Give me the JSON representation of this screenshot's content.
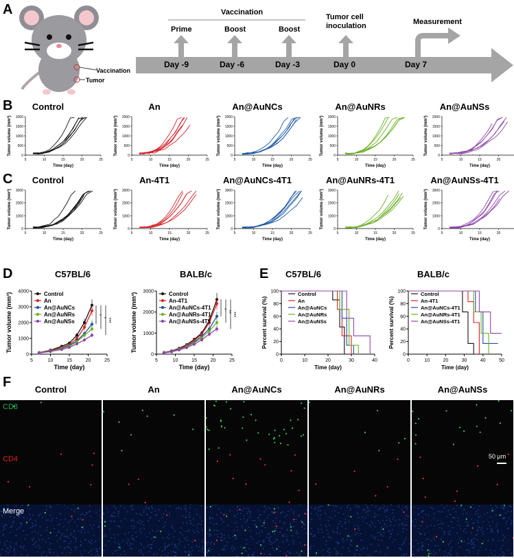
{
  "panel_labels": {
    "a": "A",
    "b": "B",
    "c": "C",
    "d": "D",
    "e": "E",
    "f": "F"
  },
  "panelA": {
    "mouse_labels": [
      "Vaccination",
      "Tumor"
    ],
    "vaccination_header": "Vaccination",
    "events": [
      "Prime",
      "Boost",
      "Boost"
    ],
    "inoculation": "Tumor cell\ninoculation",
    "measurement": "Measurement",
    "days": [
      "Day -9",
      "Day -6",
      "Day -3",
      "Day 0",
      "Day 7"
    ]
  },
  "panelB": {
    "titles": [
      "Control",
      "An",
      "An@AuNCs",
      "An@AuNRs",
      "An@AuNSs"
    ],
    "colors": [
      "#111111",
      "#d61f26",
      "#1e5aa6",
      "#6ab023",
      "#8e44a8"
    ],
    "ylabel": "Tumor volume (mm³)",
    "xlabel": "Time (day)",
    "yticks": [
      "0",
      "500",
      "1000",
      "1500",
      "2000"
    ],
    "xticks": [
      "5",
      "10",
      "15",
      "20",
      "25"
    ]
  },
  "panelC": {
    "titles": [
      "Control",
      "An-4T1",
      "An@AuNCs-4T1",
      "An@AuNRs-4T1",
      "An@AuNSs-4T1"
    ],
    "ylabel": "Tumor volume (mm³)",
    "xlabel": "Time (day)",
    "yticks": [
      "0",
      "1000",
      "2000",
      "3000"
    ],
    "xticks": [
      "5",
      "10",
      "15",
      "20",
      "25"
    ]
  },
  "chart_data": [
    {
      "type": "line",
      "title": "C57BL/6",
      "xlabel": "Time (day)",
      "ylabel": "Tumor volume (mm³)",
      "xlim": [
        5,
        25
      ],
      "ylim": [
        0,
        4000
      ],
      "xticks": [
        "5",
        "10",
        "15",
        "20",
        "25"
      ],
      "yticks": [
        "0",
        "1000",
        "2000",
        "3000",
        "4000"
      ],
      "x": [
        7,
        10,
        13,
        15,
        17,
        19,
        21
      ],
      "series": [
        {
          "name": "Control",
          "color": "#111111",
          "values": [
            100,
            250,
            500,
            700,
            1200,
            2000,
            3100
          ]
        },
        {
          "name": "An",
          "color": "#e02020",
          "values": [
            90,
            220,
            420,
            600,
            1000,
            1700,
            2750
          ]
        },
        {
          "name": "An@AuNCs",
          "color": "#1f4fa0",
          "values": [
            80,
            200,
            380,
            550,
            850,
            1300,
            1900
          ]
        },
        {
          "name": "An@AuNRs",
          "color": "#6ab023",
          "values": [
            80,
            190,
            350,
            500,
            780,
            1200,
            1600
          ]
        },
        {
          "name": "An@AuNSs",
          "color": "#8e44a8",
          "values": [
            70,
            170,
            300,
            430,
            650,
            900,
            1200
          ]
        }
      ],
      "significance": [
        "*",
        "*",
        "***"
      ]
    },
    {
      "type": "line",
      "title": "BALB/c",
      "xlabel": "Time (day)",
      "ylabel": "Tumor volume (mm³)",
      "xlim": [
        5,
        25
      ],
      "ylim": [
        0,
        3000
      ],
      "xticks": [
        "5",
        "10",
        "15",
        "20",
        "25"
      ],
      "yticks": [
        "0",
        "1000",
        "2000",
        "3000"
      ],
      "x": [
        7,
        9,
        11,
        13,
        15,
        17,
        19,
        21
      ],
      "series": [
        {
          "name": "Control",
          "color": "#111111",
          "values": [
            80,
            150,
            280,
            450,
            700,
            1000,
            1600,
            2600
          ]
        },
        {
          "name": "An-4T1",
          "color": "#e02020",
          "values": [
            75,
            140,
            260,
            420,
            650,
            950,
            1500,
            2400
          ]
        },
        {
          "name": "An@AuNCs-4T1",
          "color": "#1f4fa0",
          "values": [
            70,
            130,
            240,
            380,
            580,
            850,
            1200,
            1800
          ]
        },
        {
          "name": "An@AuNRs-4T1",
          "color": "#6ab023",
          "values": [
            65,
            120,
            220,
            350,
            530,
            780,
            1100,
            1500
          ]
        },
        {
          "name": "An@AuNSs-4T1",
          "color": "#8e44a8",
          "values": [
            60,
            110,
            200,
            310,
            470,
            680,
            950,
            1200
          ]
        }
      ],
      "significance": [
        "*",
        "**",
        "***"
      ]
    },
    {
      "type": "line",
      "title": "C57BL/6",
      "subtype": "step (Kaplan-Meier)",
      "xlabel": "Time (day)",
      "ylabel": "Percent survival (%)",
      "xlim": [
        0,
        40
      ],
      "ylim": [
        0,
        100
      ],
      "xticks": [
        "0",
        "10",
        "20",
        "30",
        "40"
      ],
      "yticks": [
        "0",
        "20",
        "40",
        "60",
        "80",
        "100"
      ],
      "series": [
        {
          "name": "Control",
          "color": "#111111",
          "steps": [
            [
              0,
              100
            ],
            [
              22,
              100
            ],
            [
              22,
              86
            ],
            [
              25,
              86
            ],
            [
              25,
              43
            ],
            [
              27,
              43
            ],
            [
              27,
              0
            ]
          ]
        },
        {
          "name": "An",
          "color": "#e02020",
          "steps": [
            [
              0,
              100
            ],
            [
              24,
              100
            ],
            [
              24,
              71
            ],
            [
              26,
              71
            ],
            [
              26,
              29
            ],
            [
              30,
              29
            ],
            [
              30,
              0
            ]
          ]
        },
        {
          "name": "An@AuNCs",
          "color": "#1f4fa0",
          "steps": [
            [
              0,
              100
            ],
            [
              26,
              100
            ],
            [
              26,
              57
            ],
            [
              28,
              57
            ],
            [
              28,
              14
            ],
            [
              31,
              14
            ],
            [
              31,
              0
            ]
          ]
        },
        {
          "name": "An@AuNRs",
          "color": "#6ab023",
          "steps": [
            [
              0,
              100
            ],
            [
              25,
              100
            ],
            [
              25,
              71
            ],
            [
              29,
              71
            ],
            [
              29,
              14
            ],
            [
              33,
              14
            ],
            [
              33,
              0
            ]
          ]
        },
        {
          "name": "An@AuNSs",
          "color": "#8e44a8",
          "steps": [
            [
              0,
              100
            ],
            [
              28,
              100
            ],
            [
              28,
              57
            ],
            [
              31,
              57
            ],
            [
              31,
              29
            ],
            [
              38,
              29
            ],
            [
              38,
              0
            ]
          ]
        }
      ]
    },
    {
      "type": "line",
      "title": "BALB/c",
      "subtype": "step (Kaplan-Meier)",
      "xlabel": "Time (day)",
      "ylabel": "Percent survival (%)",
      "xlim": [
        0,
        50
      ],
      "ylim": [
        0,
        100
      ],
      "xticks": [
        "0",
        "10",
        "20",
        "30",
        "40",
        "50"
      ],
      "yticks": [
        "0",
        "20",
        "40",
        "60",
        "80",
        "100"
      ],
      "series": [
        {
          "name": "Control",
          "color": "#111111",
          "steps": [
            [
              0,
              100
            ],
            [
              29,
              100
            ],
            [
              29,
              67
            ],
            [
              32,
              67
            ],
            [
              32,
              17
            ],
            [
              35,
              17
            ],
            [
              35,
              0
            ]
          ]
        },
        {
          "name": "An-4T1",
          "color": "#e02020",
          "steps": [
            [
              0,
              100
            ],
            [
              32,
              100
            ],
            [
              32,
              83
            ],
            [
              35,
              83
            ],
            [
              35,
              50
            ],
            [
              38,
              50
            ],
            [
              38,
              0
            ]
          ]
        },
        {
          "name": "An@AuNCs-4T1",
          "color": "#1f4fa0",
          "steps": [
            [
              0,
              100
            ],
            [
              36,
              100
            ],
            [
              36,
              67
            ],
            [
              40,
              67
            ],
            [
              40,
              17
            ],
            [
              48,
              17
            ],
            [
              48,
              17
            ]
          ]
        },
        {
          "name": "An@AuNRs-4T1",
          "color": "#6ab023",
          "steps": [
            [
              0,
              100
            ],
            [
              35,
              100
            ],
            [
              35,
              67
            ],
            [
              39,
              67
            ],
            [
              39,
              33
            ],
            [
              43,
              33
            ],
            [
              43,
              0
            ]
          ]
        },
        {
          "name": "An@AuNSs-4T1",
          "color": "#8e44a8",
          "steps": [
            [
              0,
              100
            ],
            [
              38,
              100
            ],
            [
              38,
              67
            ],
            [
              44,
              67
            ],
            [
              44,
              33
            ],
            [
              50,
              33
            ]
          ]
        }
      ]
    }
  ],
  "panelF": {
    "columns": [
      "Control",
      "An",
      "An@AuNCs",
      "An@AuNRs",
      "An@AuNSs"
    ],
    "rows": [
      "CD8",
      "CD4",
      "Merge"
    ],
    "row_colors": [
      "#1fae4a",
      "#e32027",
      "#ffffff"
    ],
    "scale_bar": "50 μm"
  }
}
